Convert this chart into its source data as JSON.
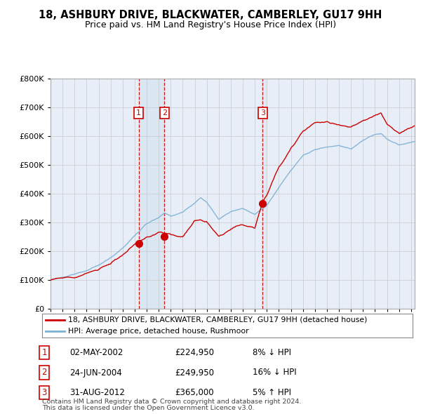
{
  "title_line1": "18, ASHBURY DRIVE, BLACKWATER, CAMBERLEY, GU17 9HH",
  "title_line2": "Price paid vs. HM Land Registry's House Price Index (HPI)",
  "legend_line1": "18, ASHBURY DRIVE, BLACKWATER, CAMBERLEY, GU17 9HH (detached house)",
  "legend_line2": "HPI: Average price, detached house, Rushmoor",
  "sale_color": "#cc0000",
  "hpi_color": "#7ab0d4",
  "shade_color": "#dde8f5",
  "background_color": "#ffffff",
  "plot_bg_color": "#e8eef8",
  "footer_line1": "Contains HM Land Registry data © Crown copyright and database right 2024.",
  "footer_line2": "This data is licensed under the Open Government Licence v3.0.",
  "transactions": [
    {
      "num": 1,
      "date": "02-MAY-2002",
      "price": 224950,
      "hpi_diff": "8% ↓ HPI",
      "x": 2002.33
    },
    {
      "num": 2,
      "date": "24-JUN-2004",
      "price": 249950,
      "hpi_diff": "16% ↓ HPI",
      "x": 2004.47
    },
    {
      "num": 3,
      "date": "31-AUG-2012",
      "price": 365000,
      "hpi_diff": "5% ↑ HPI",
      "x": 2012.66
    }
  ],
  "ylim": [
    0,
    800000
  ],
  "xlim_start": 1995,
  "xlim_end": 2025.3
}
